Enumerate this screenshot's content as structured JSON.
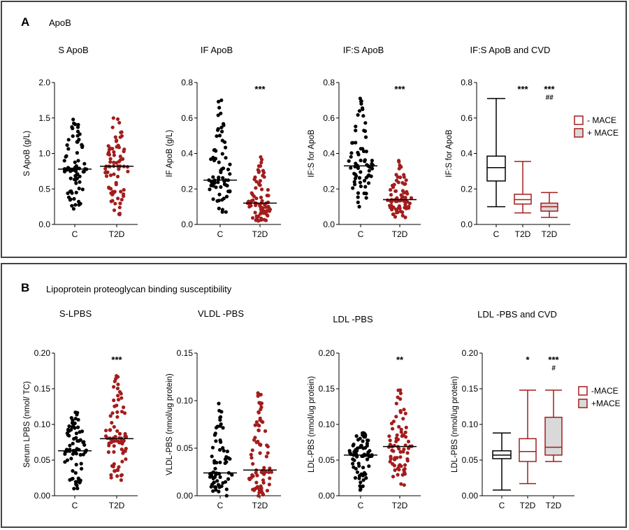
{
  "colors": {
    "control": "#000000",
    "t2d": "#a31d1d",
    "frame": "#444444",
    "box_fill_plus": "#d9d9d9"
  },
  "panels": [
    {
      "letter": "A",
      "heading": "ApoB"
    },
    {
      "letter": "B",
      "heading": "Lipoprotein proteoglycan binding susceptibility"
    }
  ],
  "chart_data": [
    {
      "id": "s_apob",
      "type": "scatter",
      "title": "S ApoB",
      "ylabel": "S ApoB (g/L)",
      "ylim": [
        0,
        2.0
      ],
      "yticks": [
        "0.0",
        "0.5",
        "1.0",
        "1.5",
        "2.0"
      ],
      "tick_values": [
        0,
        0.5,
        1.0,
        1.5,
        2.0
      ],
      "categories": [
        "C",
        "T2D"
      ],
      "series": [
        {
          "category": "C",
          "median": 0.78,
          "min": 0.22,
          "max": 1.48,
          "n": 78
        },
        {
          "category": "T2D",
          "median": 0.82,
          "min": 0.14,
          "max": 1.5,
          "n": 78
        }
      ],
      "annotations": []
    },
    {
      "id": "if_apob",
      "type": "scatter",
      "title": "IF ApoB",
      "ylabel": "IF ApoB (g/L)",
      "ylim": [
        0,
        0.8
      ],
      "yticks": [
        "0.0",
        "0.2",
        "0.4",
        "0.6",
        "0.8"
      ],
      "tick_values": [
        0,
        0.2,
        0.4,
        0.6,
        0.8
      ],
      "categories": [
        "C",
        "T2D"
      ],
      "series": [
        {
          "category": "C",
          "median": 0.25,
          "min": 0.07,
          "max": 0.7,
          "n": 70
        },
        {
          "category": "T2D",
          "median": 0.12,
          "min": 0.02,
          "max": 0.38,
          "n": 78
        }
      ],
      "annotations": [
        {
          "category": "T2D",
          "y": 0.76,
          "text": "***"
        }
      ]
    },
    {
      "id": "ifs_apob",
      "type": "scatter",
      "title": "IF:S ApoB",
      "ylabel": "IF:S for ApoB",
      "ylim": [
        0,
        0.8
      ],
      "yticks": [
        "0.0",
        "0.2",
        "0.4",
        "0.6",
        "0.8"
      ],
      "tick_values": [
        0,
        0.2,
        0.4,
        0.6,
        0.8
      ],
      "categories": [
        "C",
        "T2D"
      ],
      "series": [
        {
          "category": "C",
          "median": 0.33,
          "min": 0.1,
          "max": 0.71,
          "n": 72
        },
        {
          "category": "T2D",
          "median": 0.14,
          "min": 0.04,
          "max": 0.36,
          "n": 78
        }
      ],
      "annotations": [
        {
          "category": "T2D",
          "y": 0.76,
          "text": "***"
        }
      ]
    },
    {
      "id": "ifs_apob_cvd",
      "type": "box",
      "title": "IF:S ApoB and CVD",
      "ylabel": "IF:S for ApoB",
      "ylim": [
        0,
        0.8
      ],
      "yticks": [
        "0.0",
        "0.2",
        "0.4",
        "0.6",
        "0.8"
      ],
      "tick_values": [
        0,
        0.2,
        0.4,
        0.6,
        0.8
      ],
      "categories": [
        "C",
        "T2D",
        "T2D"
      ],
      "boxes": [
        {
          "category": "C",
          "min": 0.1,
          "q1": 0.245,
          "median": 0.32,
          "q3": 0.385,
          "max": 0.71,
          "style": "control"
        },
        {
          "category": "T2D",
          "min": 0.065,
          "q1": 0.115,
          "median": 0.14,
          "q3": 0.17,
          "max": 0.355,
          "style": "minus"
        },
        {
          "category": "T2D",
          "min": 0.04,
          "q1": 0.075,
          "median": 0.1,
          "q3": 0.12,
          "max": 0.18,
          "style": "plus"
        }
      ],
      "legend": [
        "- MACE",
        "+ MACE"
      ],
      "annotations": [
        {
          "box": 1,
          "y": 0.76,
          "text": "***"
        },
        {
          "box": 2,
          "y": 0.76,
          "text": "***"
        },
        {
          "box": 2,
          "y": 0.72,
          "text": "##"
        }
      ]
    },
    {
      "id": "s_lpbs",
      "type": "scatter",
      "title": "S-LPBS",
      "ylabel": "Serum LPBS (nmol/ TC)",
      "ylim": [
        0,
        0.2
      ],
      "yticks": [
        "0.00",
        "0.05",
        "0.10",
        "0.15",
        "0.20"
      ],
      "tick_values": [
        0,
        0.05,
        0.1,
        0.15,
        0.2
      ],
      "categories": [
        "C",
        "T2D"
      ],
      "series": [
        {
          "category": "C",
          "median": 0.063,
          "min": 0.01,
          "max": 0.117,
          "n": 78
        },
        {
          "category": "T2D",
          "median": 0.08,
          "min": 0.022,
          "max": 0.168,
          "n": 78
        }
      ],
      "annotations": [
        {
          "category": "T2D",
          "y": 0.19,
          "text": "***"
        }
      ]
    },
    {
      "id": "vldl_pbs",
      "type": "scatter",
      "title": "VLDL -PBS",
      "ylabel": "VLDL-PBS (nmol/ug protein)",
      "ylim": [
        0,
        0.15
      ],
      "yticks": [
        "0.00",
        "0.05",
        "0.10",
        "0.15"
      ],
      "tick_values": [
        0,
        0.05,
        0.1,
        0.15
      ],
      "categories": [
        "C",
        "T2D"
      ],
      "series": [
        {
          "category": "C",
          "median": 0.024,
          "min": 0.0,
          "max": 0.097,
          "n": 70
        },
        {
          "category": "T2D",
          "median": 0.027,
          "min": 0.0,
          "max": 0.108,
          "n": 78
        }
      ],
      "annotations": []
    },
    {
      "id": "ldl_pbs",
      "type": "scatter",
      "title": "LDL -PBS",
      "ylabel": "LDL-PBS (nmol/ug protein)",
      "ylim": [
        0,
        0.2
      ],
      "yticks": [
        "0.00",
        "0.05",
        "0.10",
        "0.15",
        "0.20"
      ],
      "tick_values": [
        0,
        0.05,
        0.1,
        0.15,
        0.2
      ],
      "categories": [
        "C",
        "T2D"
      ],
      "series": [
        {
          "category": "C",
          "median": 0.057,
          "min": 0.008,
          "max": 0.088,
          "n": 78
        },
        {
          "category": "T2D",
          "median": 0.069,
          "min": 0.015,
          "max": 0.148,
          "n": 78
        }
      ],
      "annotations": [
        {
          "category": "T2D",
          "y": 0.19,
          "text": "**"
        }
      ]
    },
    {
      "id": "ldl_pbs_cvd",
      "type": "box",
      "title": "LDL -PBS and CVD",
      "ylabel": "LDL-PBS (nmol/ug protein)",
      "ylim": [
        0,
        0.2
      ],
      "yticks": [
        "0.00",
        "0.05",
        "0.10",
        "0.15",
        "0.20"
      ],
      "tick_values": [
        0,
        0.05,
        0.1,
        0.15,
        0.2
      ],
      "categories": [
        "C",
        "T2D",
        "T2D"
      ],
      "boxes": [
        {
          "category": "C",
          "min": 0.008,
          "q1": 0.052,
          "median": 0.057,
          "q3": 0.063,
          "max": 0.088,
          "style": "control"
        },
        {
          "category": "T2D",
          "min": 0.017,
          "q1": 0.048,
          "median": 0.062,
          "q3": 0.08,
          "max": 0.148,
          "style": "minus"
        },
        {
          "category": "T2D",
          "min": 0.048,
          "q1": 0.057,
          "median": 0.068,
          "q3": 0.11,
          "max": 0.148,
          "style": "plus"
        }
      ],
      "legend": [
        "-MACE",
        "+MACE"
      ],
      "annotations": [
        {
          "box": 1,
          "y": 0.19,
          "text": "*"
        },
        {
          "box": 2,
          "y": 0.19,
          "text": "***"
        },
        {
          "box": 2,
          "y": 0.18,
          "text": "#"
        }
      ]
    }
  ]
}
